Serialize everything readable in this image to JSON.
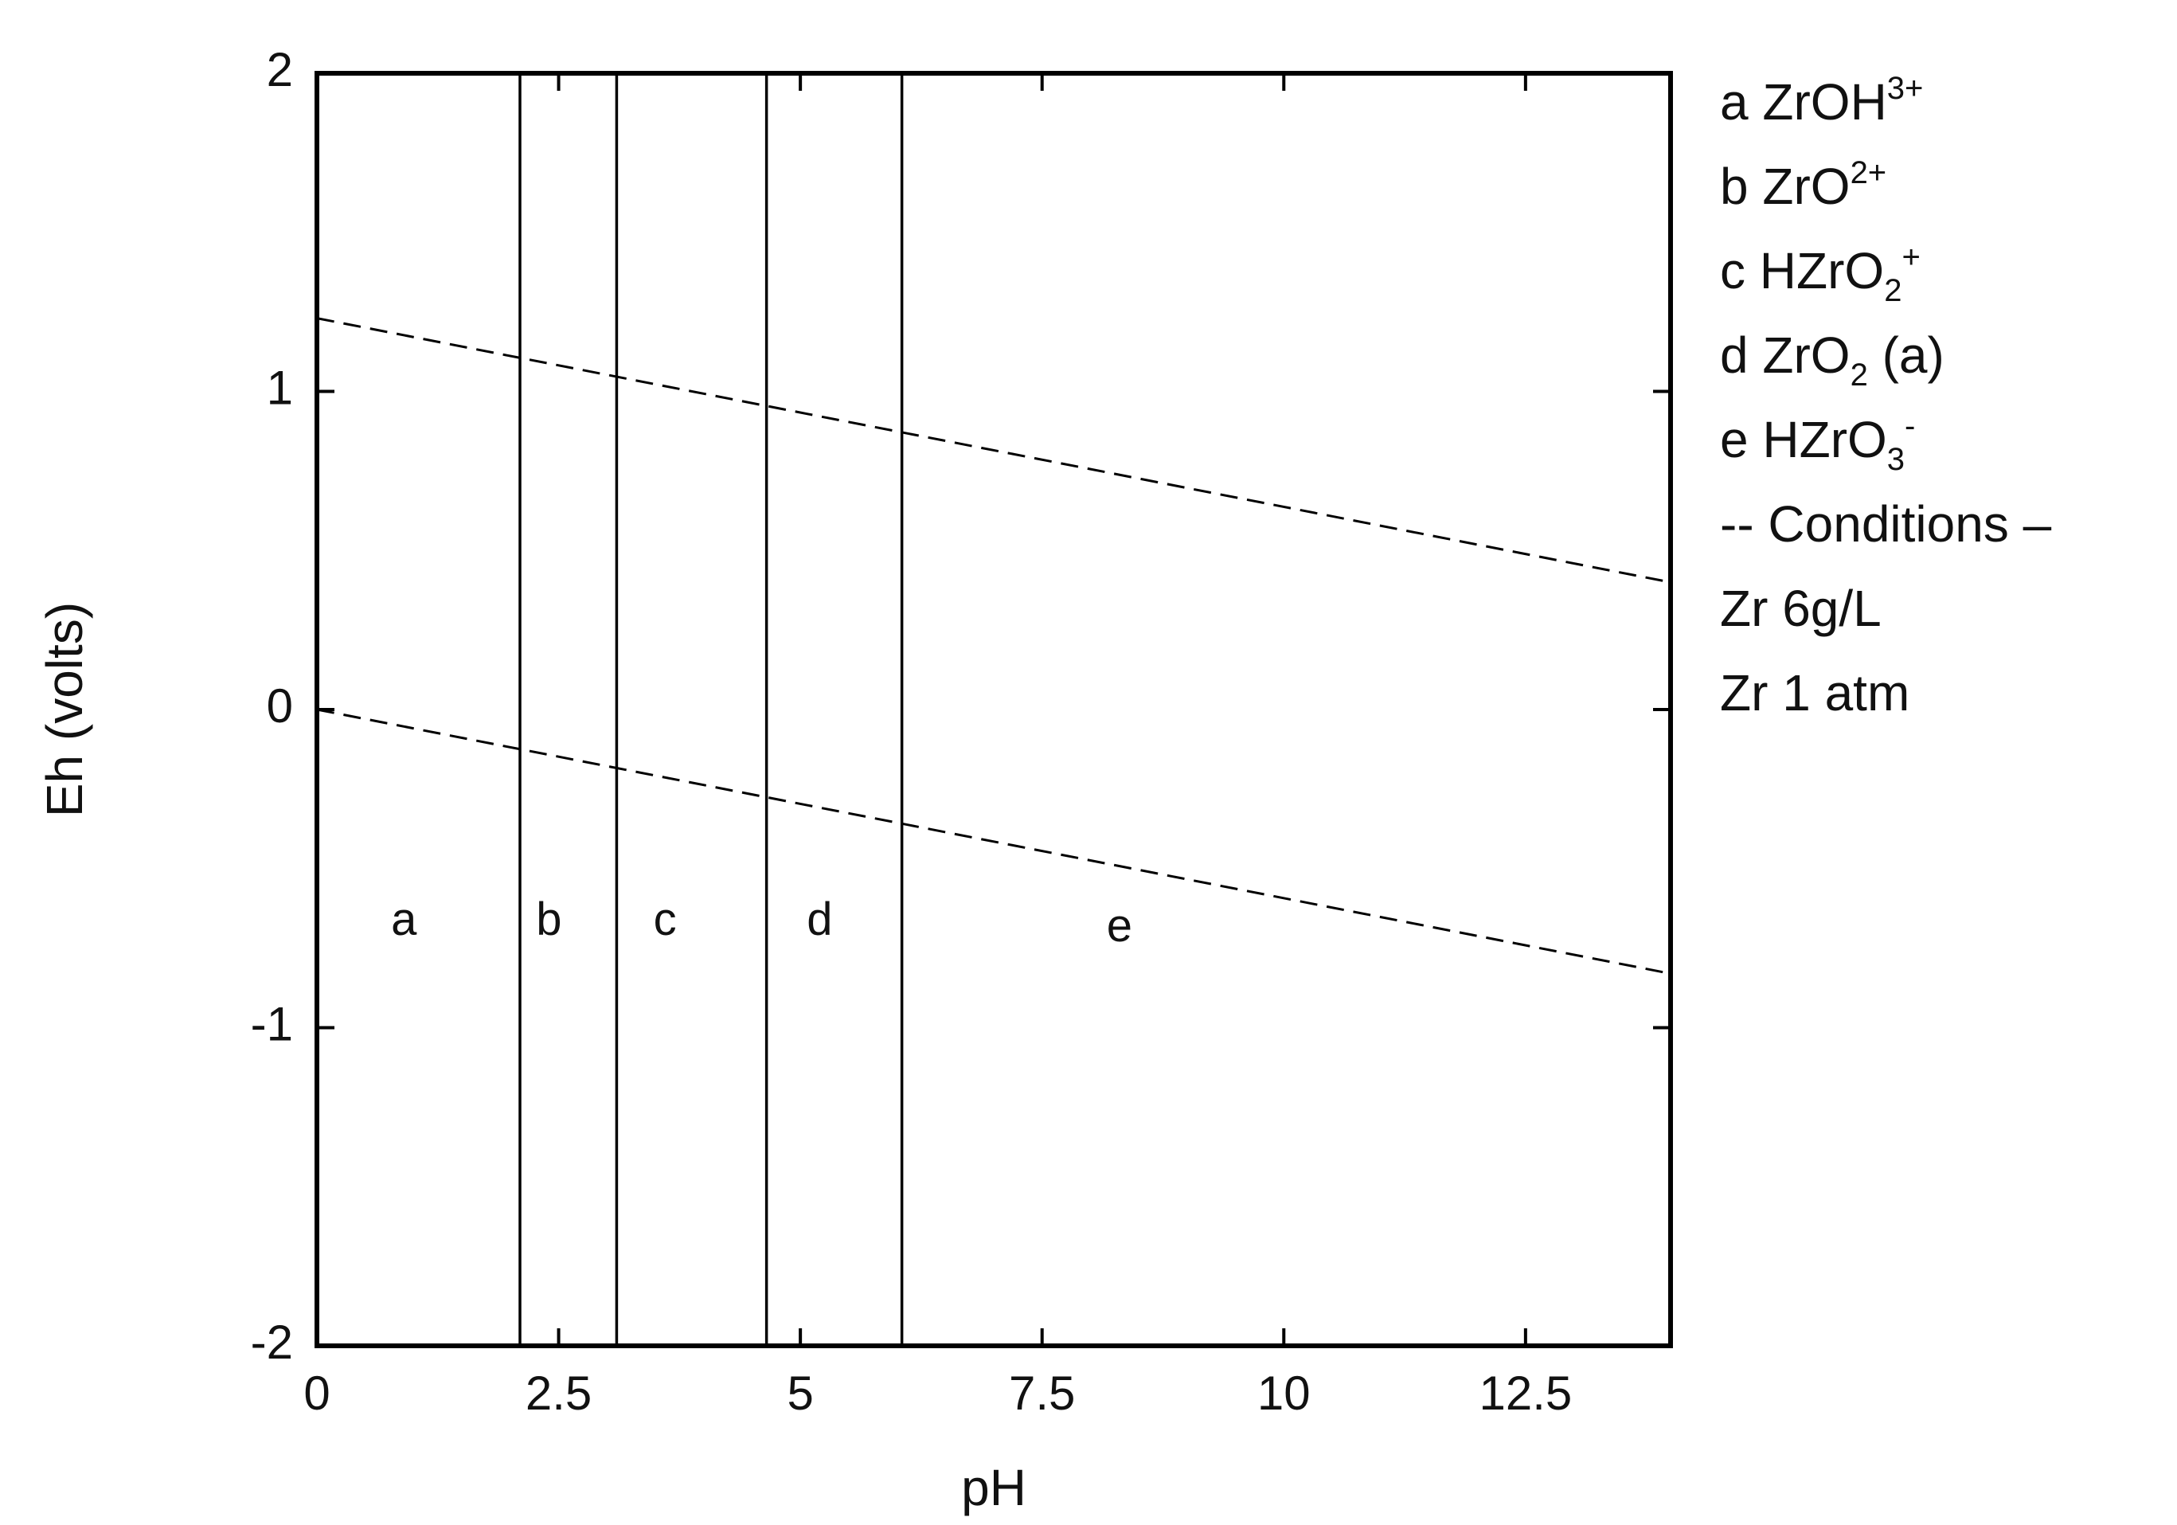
{
  "chart_data": {
    "type": "line",
    "title": "",
    "xlabel": "pH",
    "ylabel": "Eh (volts)",
    "xlim": [
      0,
      14
    ],
    "ylim": [
      -2,
      2
    ],
    "x_ticks": [
      {
        "value": 0,
        "label": "0"
      },
      {
        "value": 2.5,
        "label": "2.5"
      },
      {
        "value": 5,
        "label": "5"
      },
      {
        "value": 7.5,
        "label": "7.5"
      },
      {
        "value": 10,
        "label": "10"
      },
      {
        "value": 12.5,
        "label": "12.5"
      }
    ],
    "y_ticks": [
      {
        "value": 2,
        "label": "2"
      },
      {
        "value": 1,
        "label": "1"
      },
      {
        "value": 0,
        "label": "0"
      },
      {
        "value": -1,
        "label": "-1"
      },
      {
        "value": -2,
        "label": "-2"
      }
    ],
    "grid": false,
    "boundaries": [
      2.1,
      3.1,
      4.65,
      6.05
    ],
    "water_lines": [
      {
        "style": "dashed",
        "x": [
          0,
          14
        ],
        "y": [
          1.23,
          0.4
        ]
      },
      {
        "style": "dashed",
        "x": [
          0,
          14
        ],
        "y": [
          0.0,
          -0.83
        ]
      }
    ],
    "regions": [
      {
        "label": "a",
        "x": 0.9,
        "y": -0.67
      },
      {
        "label": "b",
        "x": 2.4,
        "y": -0.67
      },
      {
        "label": "c",
        "x": 3.6,
        "y": -0.67
      },
      {
        "label": "d",
        "x": 5.2,
        "y": -0.67
      },
      {
        "label": "e",
        "x": 8.3,
        "y": -0.69
      }
    ],
    "legend_position": "right",
    "legend": [
      {
        "parts": [
          {
            "t": "a ZrOH"
          },
          {
            "t": "3+",
            "s": "sup"
          }
        ]
      },
      {
        "parts": [
          {
            "t": "b ZrO"
          },
          {
            "t": "2+",
            "s": "sup"
          }
        ]
      },
      {
        "parts": [
          {
            "t": "c HZrO"
          },
          {
            "t": "2",
            "s": "sub"
          },
          {
            "t": "+",
            "s": "sup"
          }
        ]
      },
      {
        "parts": [
          {
            "t": "d ZrO"
          },
          {
            "t": "2",
            "s": "sub"
          },
          {
            "t": " (a)"
          }
        ]
      },
      {
        "parts": [
          {
            "t": "e HZrO"
          },
          {
            "t": "3",
            "s": "sub"
          },
          {
            "t": "-",
            "s": "sup"
          }
        ]
      },
      {
        "parts": [
          {
            "t": "-- Conditions –"
          }
        ]
      },
      {
        "parts": [
          {
            "t": "Zr 6g/L"
          }
        ]
      },
      {
        "parts": [
          {
            "t": "Zr 1 atm"
          }
        ]
      }
    ]
  }
}
